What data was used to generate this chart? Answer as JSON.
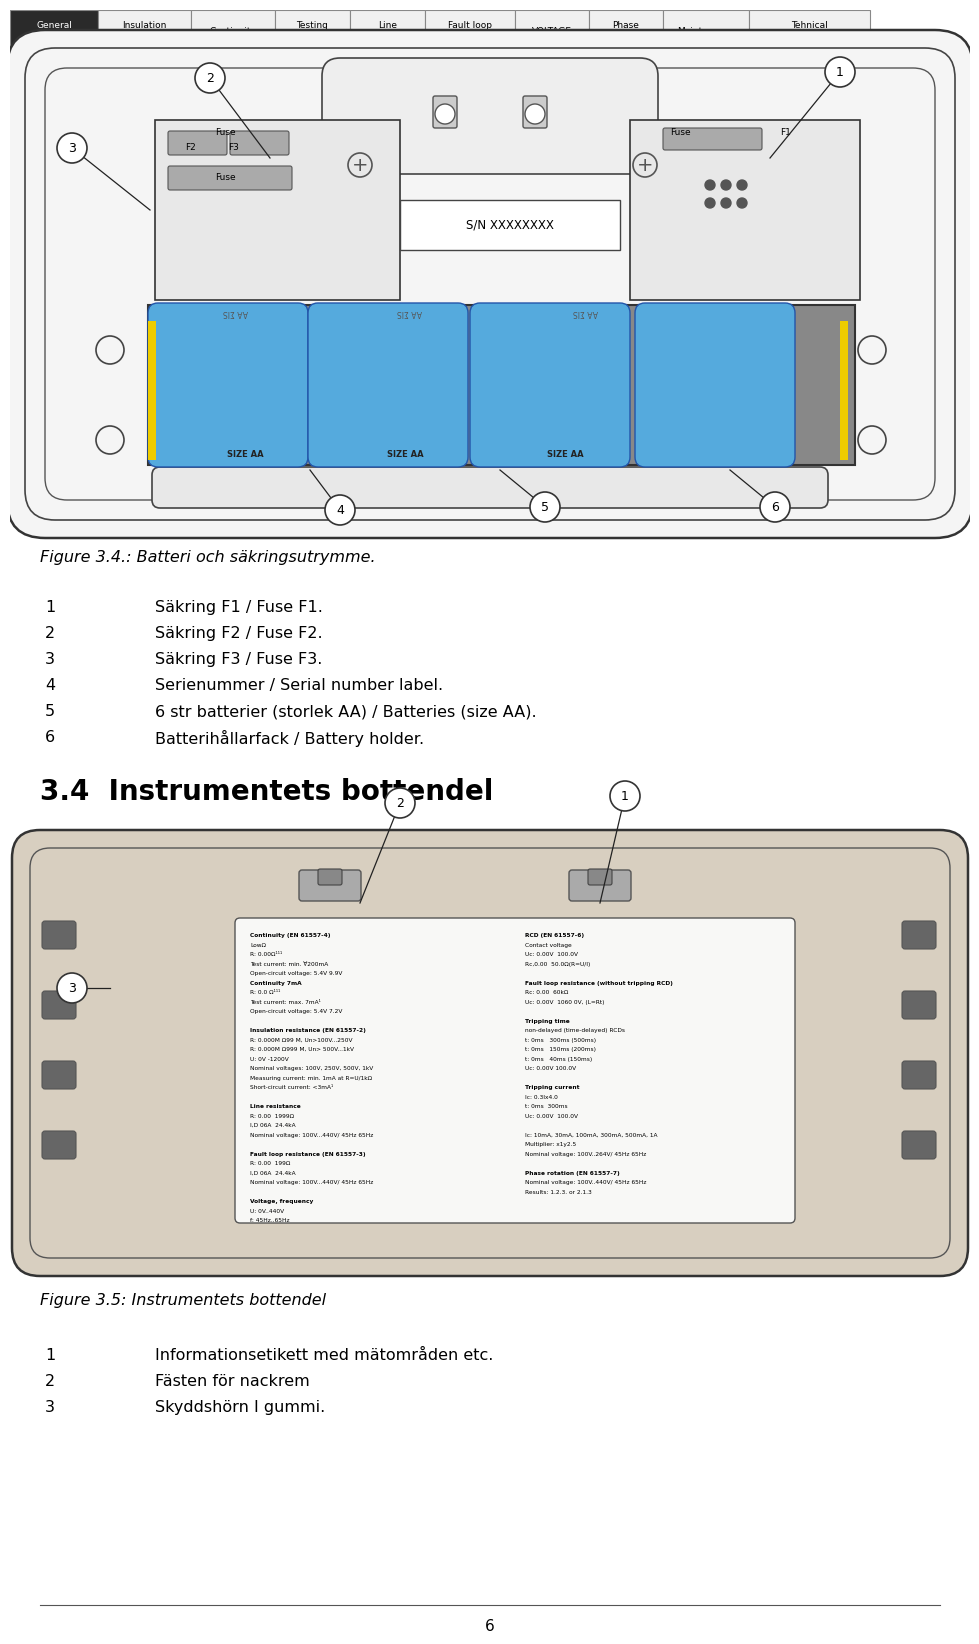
{
  "bg_color": "#ffffff",
  "tab_labels": [
    "General\ninformation",
    "Insulation\nresistance",
    "Continuity",
    "Testing\nRCDs",
    "Line\nresistance",
    "Fault loop\nresistance",
    "VOLTAGE",
    "Phase\nrotation",
    "Maintenance",
    "Tehnical\nspecifications"
  ],
  "fig_caption_top": "Figure 3.4.: Batteri och säkringsutrymme.",
  "list_items_top": [
    [
      "1",
      "Säkring F1 / Fuse F1."
    ],
    [
      "2",
      "Säkring F2 / Fuse F2."
    ],
    [
      "3",
      "Säkring F3 / Fuse F3."
    ],
    [
      "4",
      "Serienummer / Serial number label."
    ],
    [
      "5",
      "6 str batterier (storlek AA) / Batteries (size AA)."
    ],
    [
      "6",
      "Batterihållarfack / Battery holder."
    ]
  ],
  "section_title": "3.4  Instrumentets bottendel",
  "fig_caption_bottom": "Figure 3.5: Instrumentets bottendel",
  "list_items_bottom": [
    [
      "1",
      "Informationsetikett med mätområden etc."
    ],
    [
      "2",
      "Fästen för nackrem"
    ],
    [
      "3",
      "Skyddshörn I gummi."
    ]
  ],
  "page_number": "6",
  "spec_left": [
    "Continuity (EN 61557-4)",
    "LowΩ",
    "R: 0.00Ω¹¹¹",
    "Test current: min. ∀200mA",
    "Open-circuit voltage: 5.4V 9.9V",
    "Continuity 7mA",
    "R: 0.0 Ω¹¹¹",
    "Test current: max. 7mA¹",
    "Open-circuit voltage: 5.4V 7.2V",
    "",
    "Insulation resistance (EN 61557-2)",
    "R: 0.000M Ω99 M, Un>100V...250V",
    "R: 0.000M Ω999 M, Un> 500V...1kV",
    "U: 0V -1200V",
    "Nominal voltages: 100V, 250V, 500V, 1kV",
    "Measuring current: min. 1mA at R=U/1kΩ",
    "Short-circuit current: <3mA¹",
    "",
    "Line resistance",
    "R: 0.00  1999Ω",
    "I,D 06A  24.4kA",
    "Nominal voltage: 100V...440V/ 45Hz 65Hz",
    "",
    "Fault loop resistance (EN 61557-3)",
    "R: 0.00  199Ω",
    "I,D 06A  24.4kA",
    "Nominal voltage: 100V...440V/ 45Hz 65Hz",
    "",
    "Voltage, frequency",
    "U: 0V..440V",
    "f: 45Hz..65Hz"
  ],
  "spec_right": [
    "RCD (EN 61557-6)",
    "Contact voltage",
    "Uc: 0.00V  100.0V",
    "Rc,0.00  50.0Ω(R=U/I)",
    "",
    "Fault loop resistance (without tripping RCD)",
    "Rc: 0.00  60kΩ",
    "Uc: 0.00V  1060 0V, (L=Rt)",
    "",
    "Tripping time",
    "non-delayed (time-delayed) RCDs",
    "t: 0ms   300ms (500ms)",
    "t: 0ms   150ms (200ms)",
    "t: 0ms   40ms (150ms)",
    "Uc: 0.00V 100.0V",
    "",
    "Tripping current",
    "Ic: 0.3Ix4.0",
    "t: 0ms  300ms",
    "Uc: 0.00V  100.0V",
    "",
    "Ic: 10mA, 30mA, 100mA, 300mA, 500mA, 1A",
    "Multiplier: x1y2.5",
    "Nominal voltage: 100V..264V/ 45Hz 65Hz",
    "",
    "Phase rotation (EN 61557-7)",
    "Nominal voltage: 100V..440V/ 45Hz 65Hz",
    "Results: 1.2.3. or 2.1.3"
  ]
}
